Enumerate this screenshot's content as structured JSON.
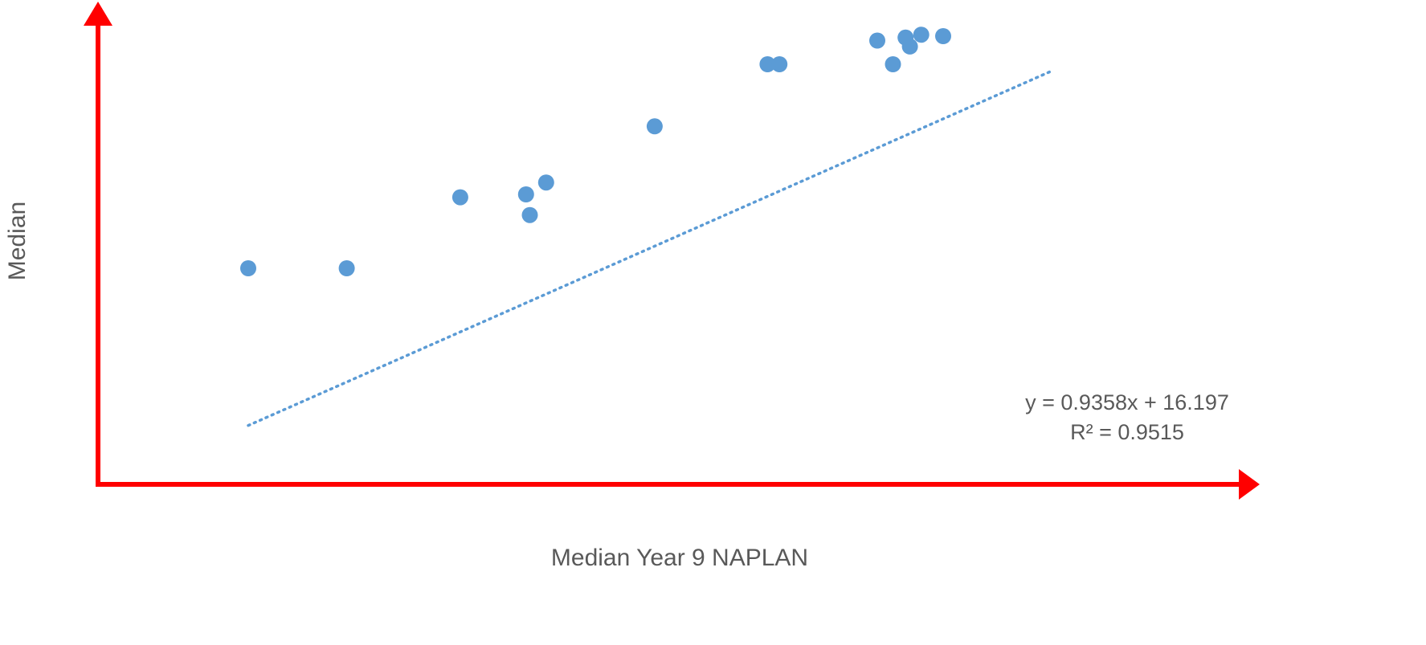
{
  "chart_data": {
    "type": "scatter",
    "title": "",
    "xlabel": "Median Year 9 NAPLAN",
    "ylabel": "Median",
    "xlim": [
      480,
      680
    ],
    "ylim": [
      420,
      690
    ],
    "grid": false,
    "legend": "none",
    "axis_color": "#ff0000",
    "point_color": "#5b9bd5",
    "trendline": {
      "style": "dotted",
      "slope": 0.9358,
      "intercept": 16.197,
      "x_start": 504,
      "x_end": 632,
      "equation_label": "y = 0.9358x + 16.197",
      "r2_label": "R² = 0.9515"
    },
    "series": [
      {
        "points": [
          {
            "x": 504,
            "y": 541
          },
          {
            "x": 519.7,
            "y": 541
          },
          {
            "x": 537.8,
            "y": 565
          },
          {
            "x": 548.3,
            "y": 566
          },
          {
            "x": 548.9,
            "y": 559
          },
          {
            "x": 551.5,
            "y": 570
          },
          {
            "x": 568.8,
            "y": 589
          },
          {
            "x": 586.8,
            "y": 610
          },
          {
            "x": 588.7,
            "y": 610
          },
          {
            "x": 604.3,
            "y": 618
          },
          {
            "x": 606.8,
            "y": 610
          },
          {
            "x": 608.8,
            "y": 619
          },
          {
            "x": 609.5,
            "y": 616
          },
          {
            "x": 611.3,
            "y": 620
          },
          {
            "x": 614.8,
            "y": 619.5
          }
        ]
      }
    ]
  }
}
